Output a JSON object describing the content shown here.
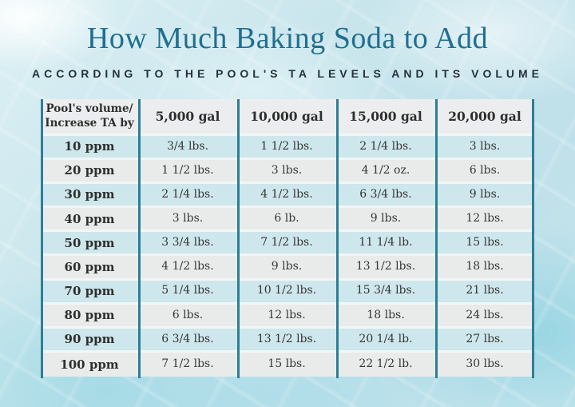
{
  "title": "How Much Baking Soda to Add",
  "subtitle": "ACCORDING TO THE POOL'S TA LEVELS AND ITS VOLUME",
  "chart_data": {
    "type": "table",
    "title": "How Much Baking Soda to Add",
    "subtitle": "ACCORDING TO THE POOL'S TA LEVELS AND ITS VOLUME",
    "corner_header_line1": "Pool's volume/",
    "corner_header_line2": "Increase TA by",
    "volume_columns": [
      "5,000 gal",
      "10,000 gal",
      "15,000 gal",
      "20,000 gal"
    ],
    "rows": [
      {
        "ta_level": "10 ppm",
        "amounts": [
          "3/4 lbs.",
          "1 1/2 lbs.",
          "2 1/4 lbs.",
          "3 lbs."
        ]
      },
      {
        "ta_level": "20 ppm",
        "amounts": [
          "1 1/2 lbs.",
          "3 lbs.",
          "4 1/2 oz.",
          "6 lbs."
        ]
      },
      {
        "ta_level": "30 ppm",
        "amounts": [
          "2 1/4 lbs.",
          "4 1/2 lbs.",
          "6 3/4 lbs.",
          "9 lbs."
        ]
      },
      {
        "ta_level": "40 ppm",
        "amounts": [
          "3 lbs.",
          "6 lb.",
          "9 lbs.",
          "12 lbs."
        ]
      },
      {
        "ta_level": "50 ppm",
        "amounts": [
          "3 3/4 lbs.",
          "7 1/2 lbs.",
          "11 1/4 lb.",
          "15 lbs."
        ]
      },
      {
        "ta_level": "60 ppm",
        "amounts": [
          "4 1/2 lbs.",
          "9 lbs.",
          "13 1/2 lbs.",
          "18 lbs."
        ]
      },
      {
        "ta_level": "70 ppm",
        "amounts": [
          "5 1/4 lbs.",
          "10 1/2 lbs.",
          "15 3/4 lbs.",
          "21 lbs."
        ]
      },
      {
        "ta_level": "80 ppm",
        "amounts": [
          "6 lbs.",
          "12 lbs.",
          "18 lbs.",
          "24 lbs."
        ]
      },
      {
        "ta_level": "90 ppm",
        "amounts": [
          "6 3/4 lbs.",
          "13 1/2 lbs.",
          "20 1/4 lb.",
          "27 lbs."
        ]
      },
      {
        "ta_level": "100 ppm",
        "amounts": [
          "7 1/2 lbs.",
          "15 lbs.",
          "22 1/2 lb.",
          "30 lbs."
        ]
      }
    ]
  },
  "colors": {
    "title_teal": "#206f90",
    "subtitle_dark": "#24313d",
    "column_line_teal": "#2d7e97",
    "row_band_teal": "#cee7ec",
    "row_band_gray": "#e9ebeb",
    "water_background": "#c3e2ea"
  }
}
